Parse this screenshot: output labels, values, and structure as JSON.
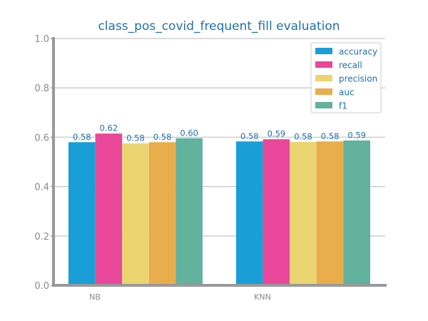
{
  "chart_data": {
    "type": "bar",
    "title": "class_pos_covid_frequent_fill evaluation",
    "xlabel": "",
    "ylabel": "",
    "categories": [
      "NB",
      "KNN"
    ],
    "series": [
      {
        "name": "accuracy",
        "values": [
          0.58,
          0.583
        ],
        "color": "#1a9ed8"
      },
      {
        "name": "recall",
        "values": [
          0.615,
          0.592
        ],
        "color": "#e8479a"
      },
      {
        "name": "precision",
        "values": [
          0.575,
          0.581
        ],
        "color": "#ebd472"
      },
      {
        "name": "auc",
        "values": [
          0.58,
          0.583
        ],
        "color": "#e9ad4c"
      },
      {
        "name": "f1",
        "values": [
          0.596,
          0.587
        ],
        "color": "#62b29e"
      }
    ],
    "data_labels": [
      [
        "0.58",
        "0.62",
        "0.58",
        "0.58",
        "0.60"
      ],
      [
        "0.58",
        "0.59",
        "0.58",
        "0.58",
        "0.59"
      ]
    ],
    "ylim": [
      0.0,
      1.0
    ],
    "yticks": [
      "0.0",
      "0.2",
      "0.4",
      "0.6",
      "0.8",
      "1.0"
    ],
    "grid": "horizontal",
    "legend_position": "top-right"
  }
}
